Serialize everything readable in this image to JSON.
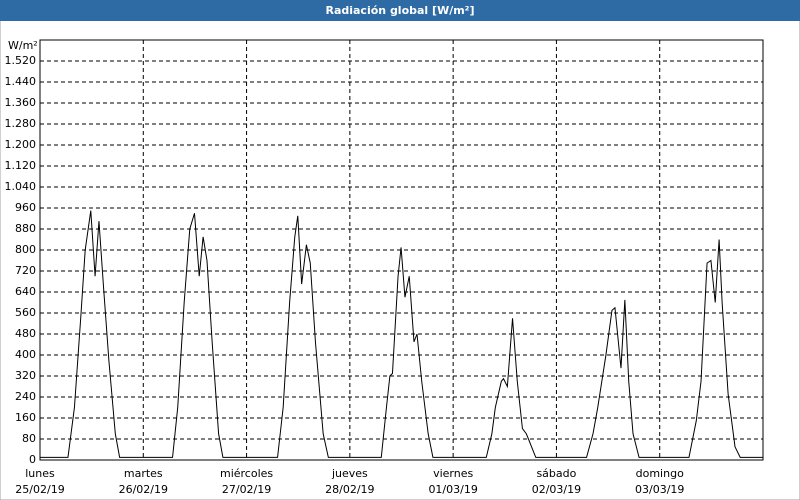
{
  "chart_data": {
    "type": "line",
    "title": "Radiación global [W/m²]",
    "y_unit": "W/m²",
    "x": [
      0,
      6.5,
      8,
      9.5,
      10.5,
      11.8,
      12.8,
      13.7,
      14.8,
      16,
      17.5,
      18.5,
      30.8,
      32,
      33.5,
      34.8,
      35.9,
      37,
      37.9,
      38.8,
      40,
      41.5,
      42.5,
      55.2,
      56.5,
      58,
      59.2,
      59.9,
      60.8,
      61.9,
      62.8,
      64,
      65.8,
      67,
      79.3,
      80.5,
      81.3,
      81.9,
      83.2,
      83.9,
      84.8,
      85.8,
      86.9,
      87.6,
      88.7,
      90.2,
      91.3,
      103.7,
      105,
      105.8,
      107.2,
      107.7,
      108.6,
      109.8,
      110.9,
      112.1,
      113,
      113.5,
      115.2,
      127,
      128.5,
      129.6,
      131.5,
      132.9,
      133.6,
      135,
      135.9,
      136.8,
      137.8,
      139.2,
      150.8,
      152.5,
      153.6,
      155,
      155.9,
      156.9,
      157.8,
      158.5,
      159.9,
      161.5,
      162.7,
      168
    ],
    "series": [
      {
        "name": "Radiación global",
        "color": "#000000",
        "values": [
          10,
          10,
          200,
          550,
          800,
          950,
          700,
          910,
          650,
          380,
          100,
          10,
          10,
          200,
          600,
          880,
          940,
          700,
          850,
          760,
          450,
          100,
          10,
          10,
          200,
          600,
          850,
          930,
          670,
          820,
          750,
          450,
          100,
          10,
          10,
          200,
          320,
          330,
          700,
          810,
          620,
          700,
          450,
          480,
          300,
          100,
          10,
          10,
          100,
          200,
          300,
          310,
          280,
          540,
          300,
          120,
          100,
          80,
          10,
          10,
          100,
          200,
          400,
          570,
          580,
          350,
          610,
          300,
          100,
          10,
          10,
          150,
          300,
          750,
          760,
          600,
          840,
          600,
          250,
          50,
          10,
          10
        ]
      }
    ],
    "xlim": [
      0,
      168
    ],
    "xticks": [
      {
        "value": 0,
        "label": "lunes",
        "date": "25/02/19"
      },
      {
        "value": 24,
        "label": "martes",
        "date": "26/02/19"
      },
      {
        "value": 48,
        "label": "miércoles",
        "date": "27/02/19"
      },
      {
        "value": 72,
        "label": "jueves",
        "date": "28/02/19"
      },
      {
        "value": 96,
        "label": "viernes",
        "date": "01/03/19"
      },
      {
        "value": 120,
        "label": "sábado",
        "date": "02/03/19"
      },
      {
        "value": 144,
        "label": "domingo",
        "date": "03/03/19"
      }
    ],
    "ylim": [
      0,
      1600
    ],
    "yticks": [
      0,
      80,
      160,
      240,
      320,
      400,
      480,
      560,
      640,
      720,
      800,
      880,
      960,
      {
        "value": 1040,
        "label": "1.040"
      },
      {
        "value": 1120,
        "label": "1.120"
      },
      {
        "value": 1200,
        "label": "1.200"
      },
      {
        "value": 1280,
        "label": "1.280"
      },
      {
        "value": 1360,
        "label": "1.360"
      },
      {
        "value": 1440,
        "label": "1.440"
      },
      {
        "value": 1520,
        "label": "1.520"
      }
    ],
    "grid": true
  }
}
